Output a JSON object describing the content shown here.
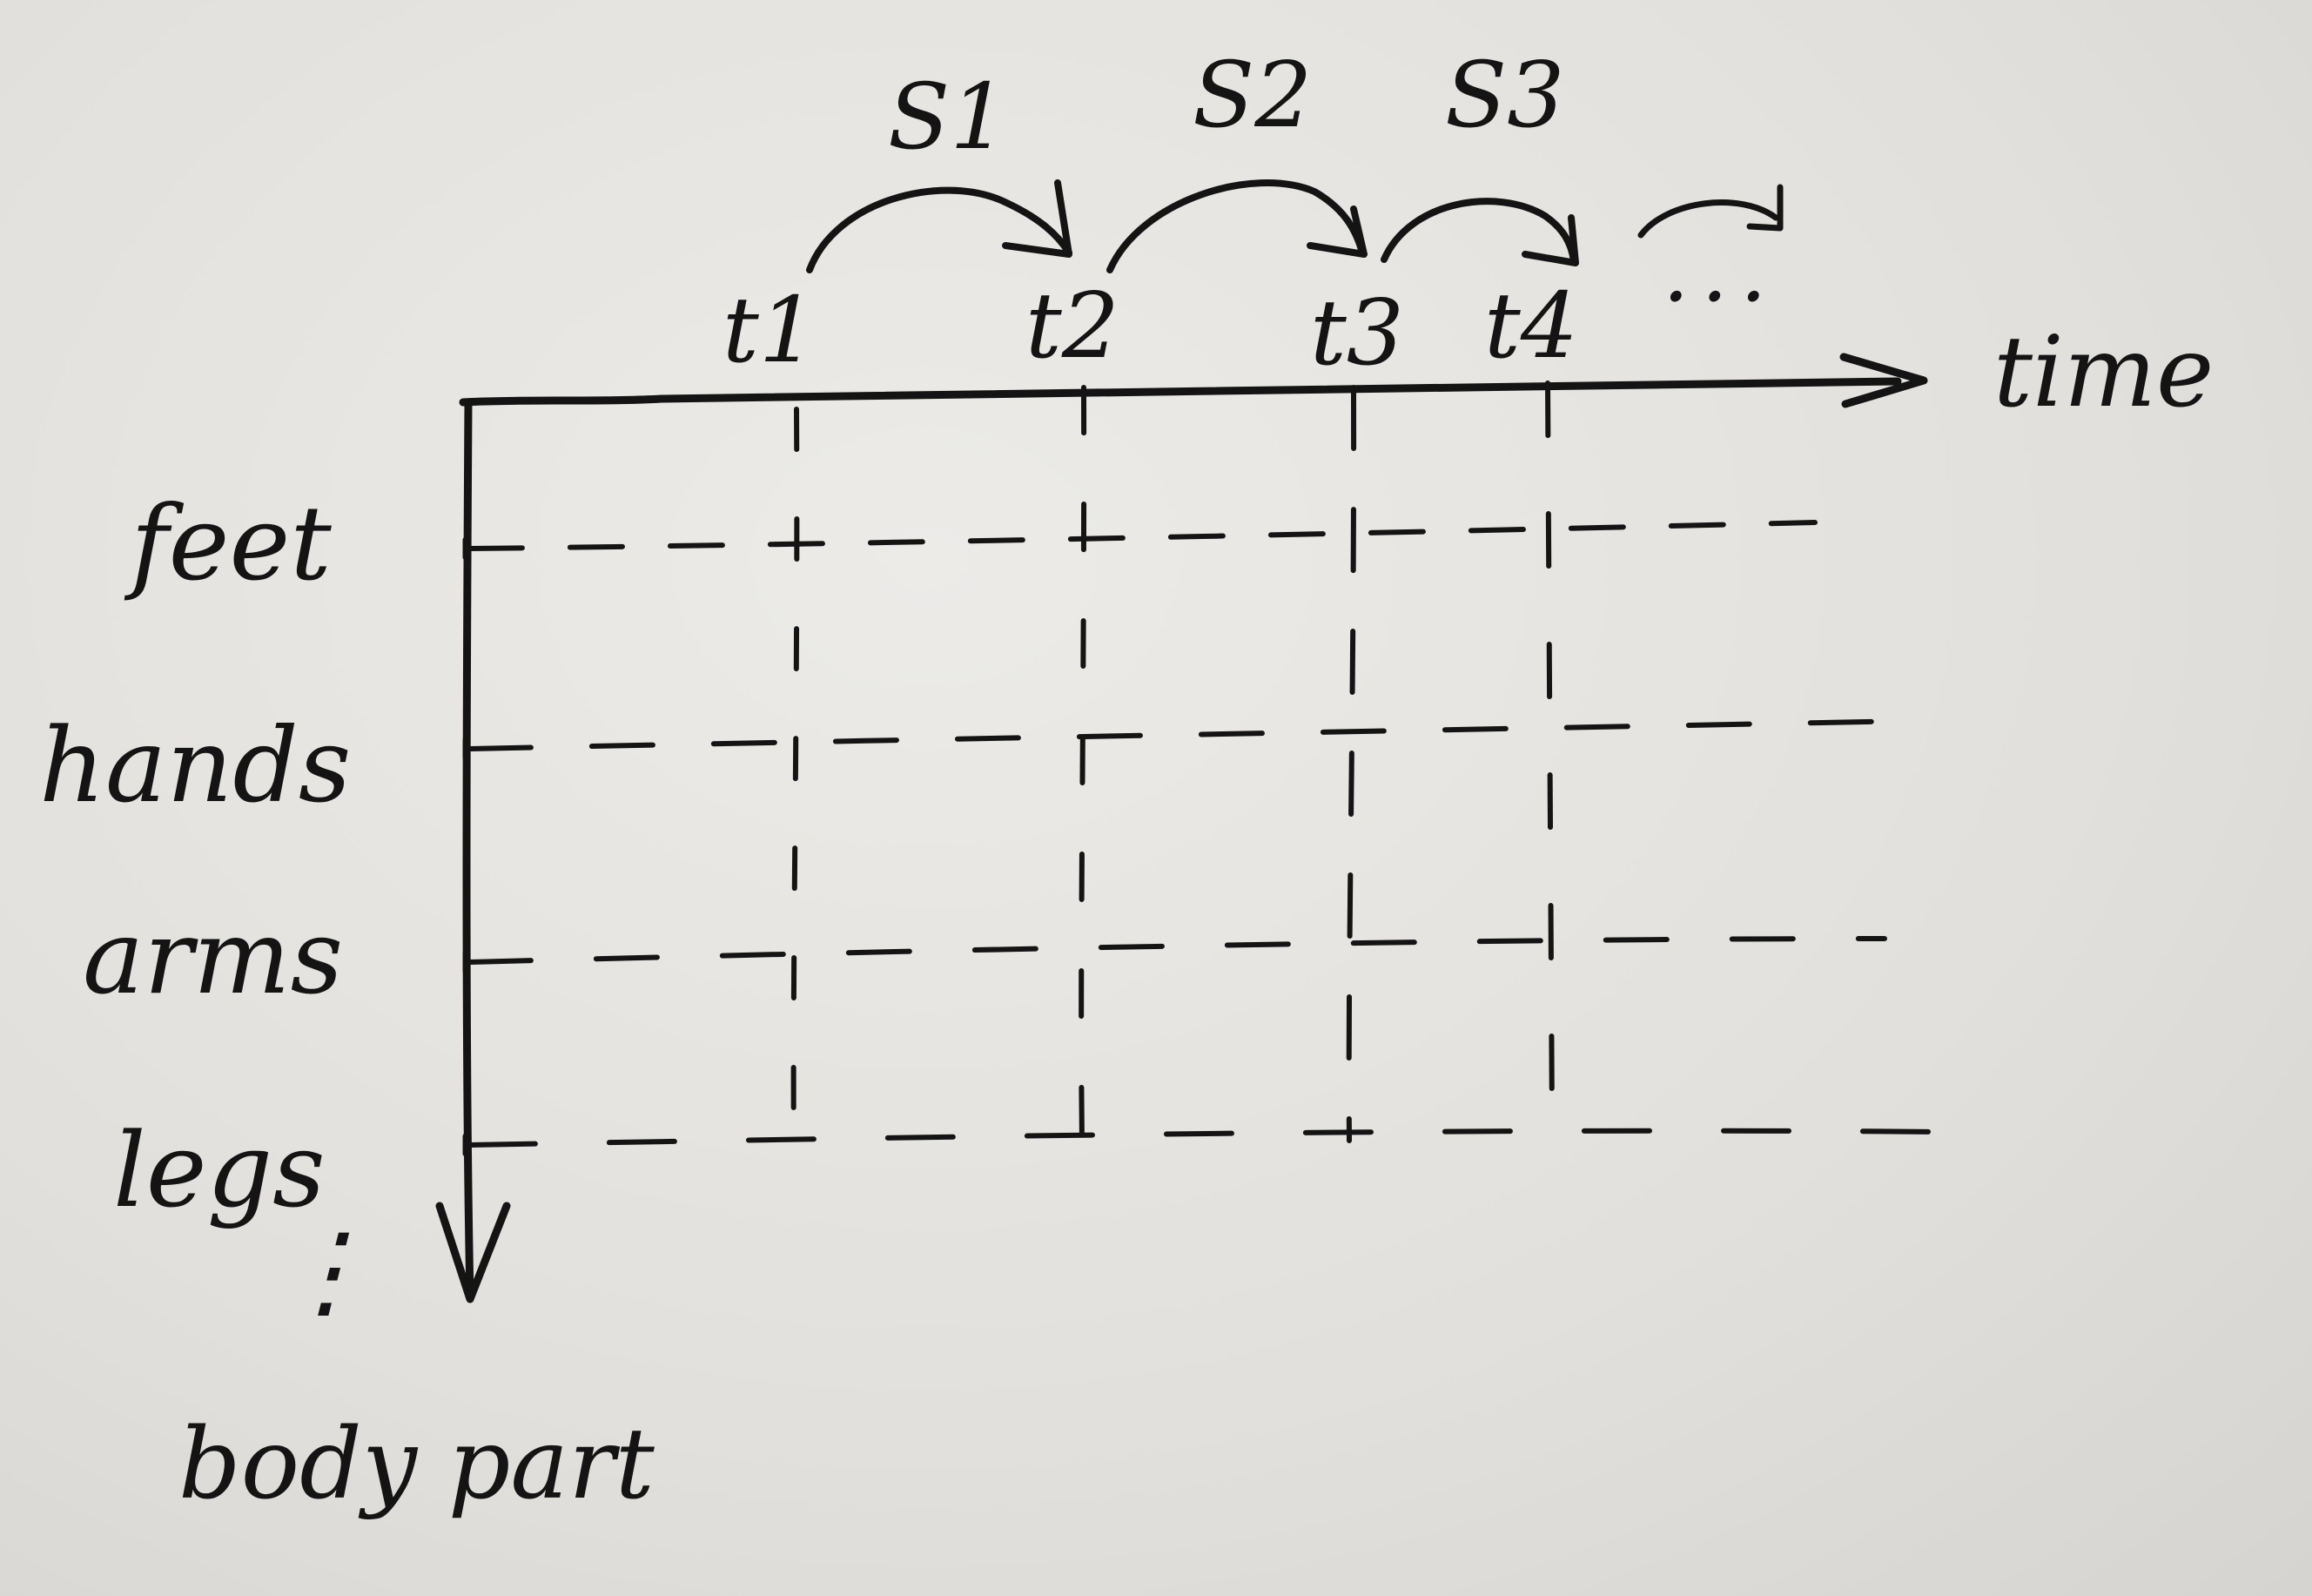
{
  "diagram": {
    "x_axis_label": "time",
    "y_axis_label": "body part",
    "rows": [
      {
        "label": "feet"
      },
      {
        "label": "hands"
      },
      {
        "label": "arms"
      },
      {
        "label": "legs"
      }
    ],
    "rows_continuation": "⋮",
    "time_points": [
      {
        "label": "t1"
      },
      {
        "label": "t2"
      },
      {
        "label": "t3"
      },
      {
        "label": "t4"
      }
    ],
    "time_continuation": "...",
    "steps": [
      {
        "label": "S1",
        "from": "t1",
        "to": "t2"
      },
      {
        "label": "S2",
        "from": "t2",
        "to": "t3"
      },
      {
        "label": "S3",
        "from": "t3",
        "to": "t4"
      }
    ]
  }
}
